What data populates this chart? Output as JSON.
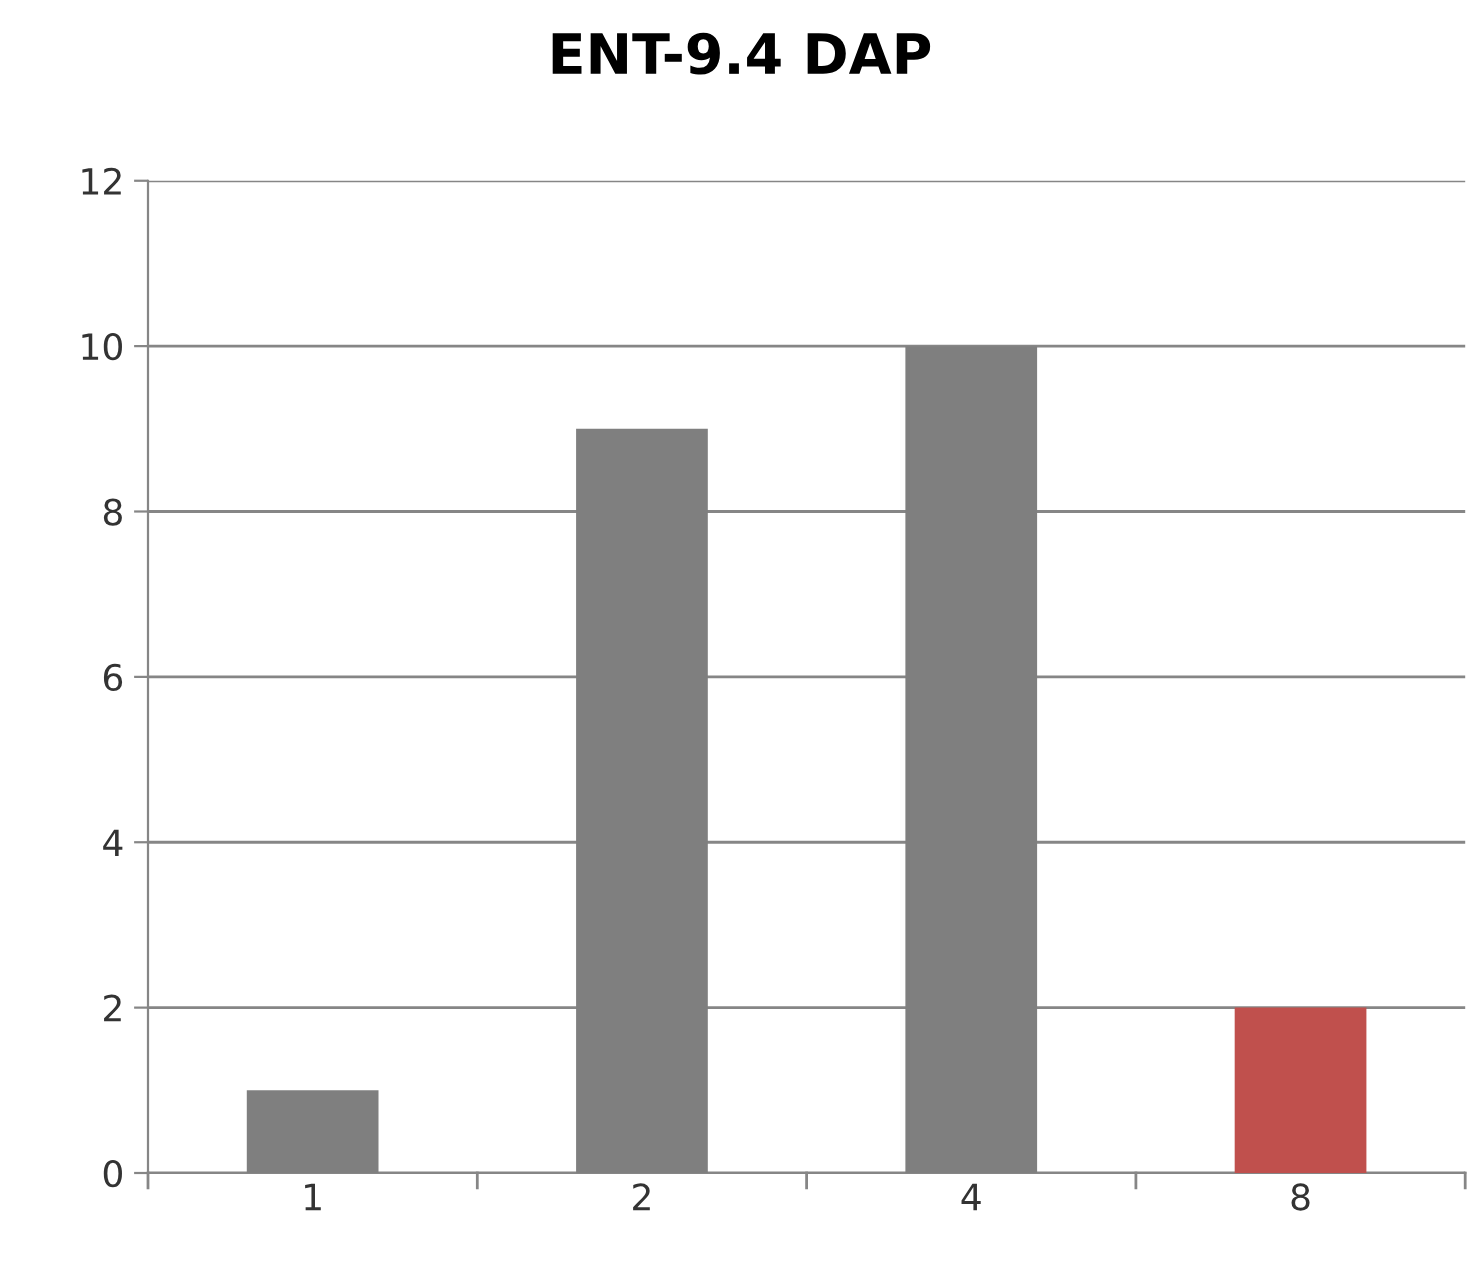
{
  "chart_data": {
    "type": "bar",
    "title": "ENT-9.4 DAP",
    "categories": [
      "1",
      "2",
      "4",
      "8"
    ],
    "values": [
      1,
      9,
      10,
      2
    ],
    "colors": [
      "#7f7f7f",
      "#7f7f7f",
      "#7f7f7f",
      "#c0504d"
    ],
    "ylim": [
      0,
      12
    ],
    "yticks": [
      0,
      2,
      4,
      6,
      8,
      10,
      12
    ],
    "grid": "y",
    "legend": false
  }
}
